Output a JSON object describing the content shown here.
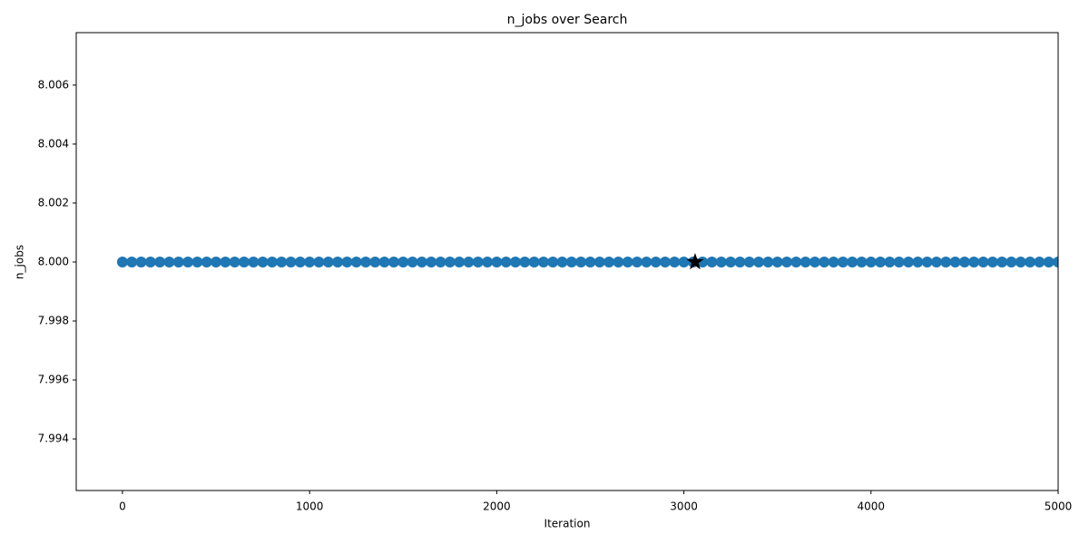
{
  "chart_data": {
    "type": "scatter",
    "title": "n_jobs over Search",
    "x_label": "Iteration",
    "y_label": "n_jobs",
    "xlim": [
      -247,
      5000
    ],
    "ylim": [
      7.99225,
      8.00778
    ],
    "xticks": [
      0,
      1000,
      2000,
      3000,
      4000,
      5000
    ],
    "yticks": [
      7.994,
      7.996,
      7.998,
      {
        "value": 8,
        "label": "8.000"
      },
      8.002,
      8.004,
      8.006
    ],
    "series": [
      {
        "color": "#1f77b4",
        "marker": "circle",
        "x": [
          0,
          50,
          100,
          150,
          200,
          250,
          300,
          350,
          400,
          450,
          500,
          550,
          600,
          650,
          700,
          750,
          800,
          850,
          900,
          950,
          1000,
          1050,
          1100,
          1150,
          1200,
          1250,
          1300,
          1350,
          1400,
          1450,
          1500,
          1550,
          1600,
          1650,
          1700,
          1750,
          1800,
          1850,
          1900,
          1950,
          2000,
          2050,
          2100,
          2150,
          2200,
          2250,
          2300,
          2350,
          2400,
          2450,
          2500,
          2550,
          2600,
          2650,
          2700,
          2750,
          2800,
          2850,
          2900,
          2950,
          3000,
          3050,
          3100,
          3150,
          3200,
          3250,
          3300,
          3350,
          3400,
          3450,
          3500,
          3550,
          3600,
          3650,
          3700,
          3750,
          3800,
          3850,
          3900,
          3950,
          4000,
          4050,
          4100,
          4150,
          4200,
          4250,
          4300,
          4350,
          4400,
          4450,
          4500,
          4550,
          4600,
          4650,
          4700,
          4750,
          4800,
          4850,
          4900,
          4950,
          5000
        ],
        "values": [
          8,
          8,
          8,
          8,
          8,
          8,
          8,
          8,
          8,
          8,
          8,
          8,
          8,
          8,
          8,
          8,
          8,
          8,
          8,
          8,
          8,
          8,
          8,
          8,
          8,
          8,
          8,
          8,
          8,
          8,
          8,
          8,
          8,
          8,
          8,
          8,
          8,
          8,
          8,
          8,
          8,
          8,
          8,
          8,
          8,
          8,
          8,
          8,
          8,
          8,
          8,
          8,
          8,
          8,
          8,
          8,
          8,
          8,
          8,
          8,
          8,
          8,
          8,
          8,
          8,
          8,
          8,
          8,
          8,
          8,
          8,
          8,
          8,
          8,
          8,
          8,
          8,
          8,
          8,
          8,
          8,
          8,
          8,
          8,
          8,
          8,
          8,
          8,
          8,
          8,
          8,
          8,
          8,
          8,
          8,
          8,
          8,
          8,
          8,
          8,
          8
        ]
      },
      {
        "color": "#000000",
        "marker": "star",
        "x": [
          3060
        ],
        "values": [
          8
        ]
      }
    ]
  }
}
